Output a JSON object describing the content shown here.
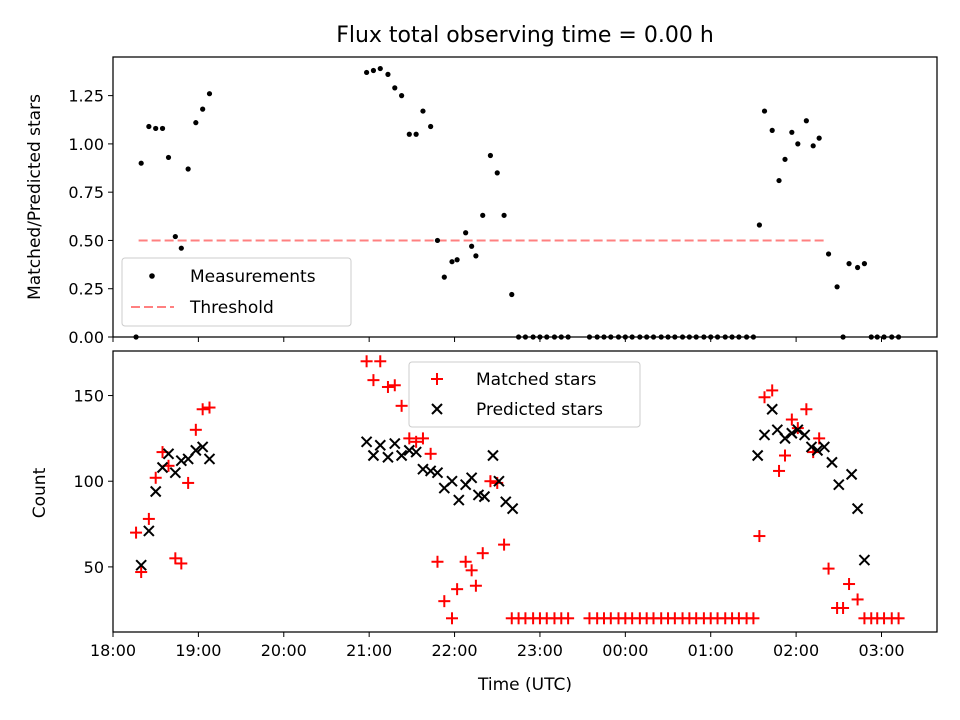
{
  "chart_data": [
    {
      "type": "scatter",
      "title": "Flux total observing time = 0.00 h",
      "ylabel": "Matched/Predicted stars",
      "xlim": [
        18.0,
        27.65
      ],
      "ylim": [
        0.0,
        1.45
      ],
      "yticks": [
        0.0,
        0.25,
        0.5,
        0.75,
        1.0,
        1.25
      ],
      "ytick_labels": [
        "0.00",
        "0.25",
        "0.50",
        "0.75",
        "1.00",
        "1.25"
      ],
      "legend": {
        "position": "lower-left",
        "entries": [
          "Measurements",
          "Threshold"
        ]
      },
      "threshold": {
        "name": "Threshold",
        "x": [
          18.3,
          26.35
        ],
        "value": 0.5,
        "color": "#ff8080"
      },
      "series": [
        {
          "name": "Measurements",
          "marker": "dot",
          "color": "#000000",
          "x": [
            18.27,
            18.33,
            18.42,
            18.5,
            18.58,
            18.65,
            18.73,
            18.8,
            18.88,
            18.97,
            19.05,
            19.13,
            20.97,
            21.05,
            21.13,
            21.22,
            21.3,
            21.38,
            21.47,
            21.55,
            21.63,
            21.72,
            21.8,
            21.88,
            21.97,
            22.03,
            22.13,
            22.2,
            22.25,
            22.33,
            22.42,
            22.5,
            22.58,
            22.67,
            22.75,
            22.83,
            22.92,
            23.0,
            23.08,
            23.17,
            23.25,
            23.33,
            23.58,
            23.67,
            23.75,
            23.83,
            23.92,
            24.0,
            24.08,
            24.17,
            24.25,
            24.33,
            24.42,
            24.5,
            24.58,
            24.67,
            24.75,
            24.83,
            24.92,
            25.0,
            25.08,
            25.17,
            25.25,
            25.33,
            25.42,
            25.5,
            25.57,
            25.63,
            25.72,
            25.8,
            25.87,
            25.95,
            26.02,
            26.12,
            26.2,
            26.27,
            26.38,
            26.48,
            26.55,
            26.62,
            26.72,
            26.8,
            26.88,
            26.95,
            27.03,
            27.12,
            27.2
          ],
          "y": [
            0.0,
            0.9,
            1.09,
            1.08,
            1.08,
            0.93,
            0.52,
            0.46,
            0.87,
            1.11,
            1.18,
            1.26,
            1.37,
            1.38,
            1.39,
            1.36,
            1.29,
            1.25,
            1.05,
            1.05,
            1.17,
            1.09,
            0.5,
            0.31,
            0.39,
            0.4,
            0.54,
            0.47,
            0.42,
            0.63,
            0.94,
            0.85,
            0.63,
            0.22,
            0.0,
            0.0,
            0.0,
            0.0,
            0.0,
            0.0,
            0.0,
            0.0,
            0.0,
            0.0,
            0.0,
            0.0,
            0.0,
            0.0,
            0.0,
            0.0,
            0.0,
            0.0,
            0.0,
            0.0,
            0.0,
            0.0,
            0.0,
            0.0,
            0.0,
            0.0,
            0.0,
            0.0,
            0.0,
            0.0,
            0.0,
            0.0,
            0.58,
            1.17,
            1.07,
            0.81,
            0.92,
            1.06,
            1.0,
            1.12,
            0.99,
            1.03,
            0.43,
            0.26,
            0.0,
            0.38,
            0.36,
            0.38,
            0.0,
            0.0,
            0.0,
            0.0,
            0.0
          ]
        }
      ]
    },
    {
      "type": "scatter",
      "xlabel": "Time (UTC)",
      "ylabel": "Count",
      "xlim": [
        18.0,
        27.65
      ],
      "ylim": [
        12,
        176
      ],
      "yticks": [
        50,
        100,
        150
      ],
      "ytick_labels": [
        "50",
        "100",
        "150"
      ],
      "xticks": [
        18,
        19,
        20,
        21,
        22,
        23,
        24,
        25,
        26,
        27
      ],
      "xtick_labels": [
        "18:00",
        "19:00",
        "20:00",
        "21:00",
        "22:00",
        "23:00",
        "00:00",
        "01:00",
        "02:00",
        "03:00"
      ],
      "legend": {
        "position": "upper-center",
        "entries": [
          "Matched stars",
          "Predicted stars"
        ]
      },
      "series": [
        {
          "name": "Matched stars",
          "marker": "plus",
          "color": "#ff0000",
          "x": [
            18.27,
            18.33,
            18.42,
            18.5,
            18.58,
            18.65,
            18.73,
            18.8,
            18.88,
            18.97,
            19.05,
            19.13,
            20.97,
            21.05,
            21.13,
            21.22,
            21.3,
            21.38,
            21.47,
            21.55,
            21.63,
            21.72,
            21.8,
            21.88,
            21.97,
            22.03,
            22.13,
            22.2,
            22.25,
            22.33,
            22.42,
            22.5,
            22.58,
            22.67,
            22.75,
            22.83,
            22.92,
            23.0,
            23.08,
            23.17,
            23.25,
            23.33,
            23.58,
            23.67,
            23.75,
            23.83,
            23.92,
            24.0,
            24.08,
            24.17,
            24.25,
            24.33,
            24.42,
            24.5,
            24.58,
            24.67,
            24.75,
            24.83,
            24.92,
            25.0,
            25.08,
            25.17,
            25.25,
            25.33,
            25.42,
            25.5,
            25.57,
            25.63,
            25.72,
            25.8,
            25.87,
            25.95,
            26.02,
            26.12,
            26.2,
            26.27,
            26.38,
            26.48,
            26.55,
            26.62,
            26.72,
            26.8,
            26.88,
            26.95,
            27.03,
            27.12,
            27.2
          ],
          "y": [
            70,
            47,
            78,
            102,
            117,
            109,
            55,
            52,
            99,
            130,
            142,
            143,
            170,
            159,
            170,
            155,
            156,
            144,
            125,
            123,
            125,
            116,
            53,
            30,
            20,
            37,
            53,
            48,
            39,
            58,
            100,
            99,
            63,
            20,
            20,
            20,
            20,
            20,
            20,
            20,
            20,
            20,
            20,
            20,
            20,
            20,
            20,
            20,
            20,
            20,
            20,
            20,
            20,
            20,
            20,
            20,
            20,
            20,
            20,
            20,
            20,
            20,
            20,
            20,
            20,
            20,
            68,
            149,
            153,
            106,
            115,
            136,
            131,
            142,
            117,
            125,
            49,
            26,
            26,
            40,
            31,
            20,
            20,
            20,
            20,
            20,
            20
          ]
        },
        {
          "name": "Predicted stars",
          "marker": "x",
          "color": "#000000",
          "x": [
            18.33,
            18.42,
            18.5,
            18.58,
            18.65,
            18.73,
            18.8,
            18.88,
            18.97,
            19.05,
            19.13,
            20.97,
            21.05,
            21.13,
            21.22,
            21.3,
            21.38,
            21.47,
            21.55,
            21.63,
            21.72,
            21.8,
            21.88,
            21.97,
            22.05,
            22.13,
            22.2,
            22.28,
            22.35,
            22.45,
            22.52,
            22.6,
            22.68,
            25.55,
            25.63,
            25.72,
            25.78,
            25.87,
            25.95,
            26.02,
            26.1,
            26.18,
            26.25,
            26.33,
            26.42,
            26.5,
            26.65,
            26.72,
            26.8
          ],
          "y": [
            51,
            71,
            94,
            108,
            116,
            105,
            112,
            113,
            118,
            120,
            113,
            123,
            115,
            121,
            114,
            122,
            115,
            118,
            117,
            107,
            106,
            105,
            96,
            100,
            89,
            98,
            102,
            92,
            91,
            115,
            100,
            88,
            84,
            115,
            127,
            142,
            130,
            125,
            128,
            130,
            127,
            120,
            118,
            120,
            111,
            98,
            104,
            84,
            54
          ]
        }
      ]
    }
  ]
}
